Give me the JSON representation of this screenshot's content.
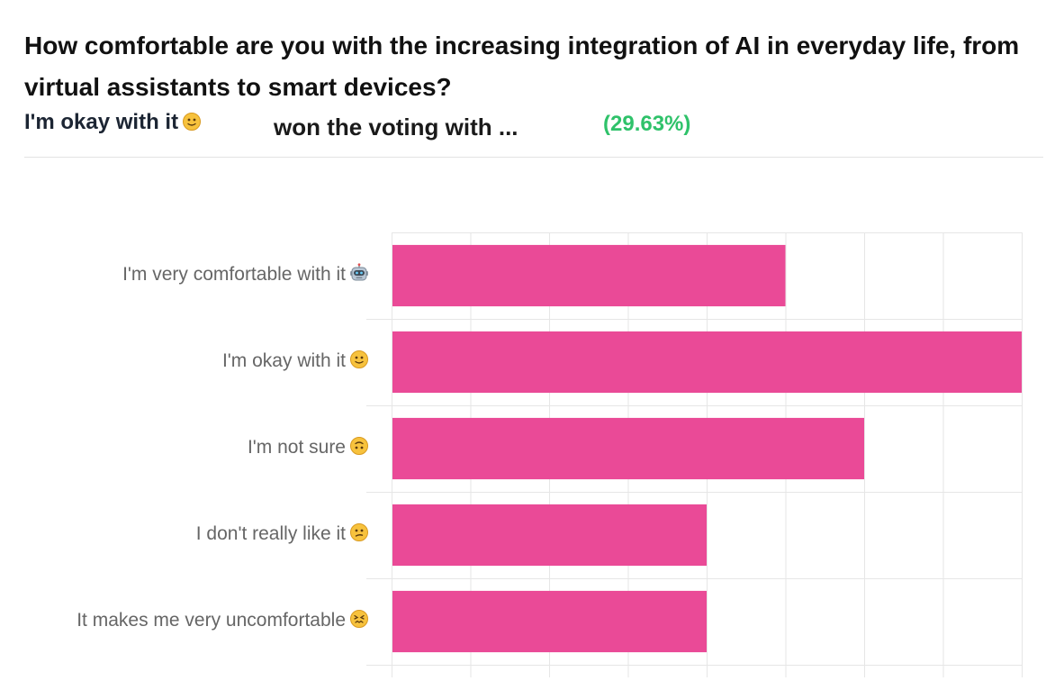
{
  "header": {
    "question": "How comfortable are you with the increasing integration of AI in everyday life, from virtual assistants to smart devices?",
    "winner_label": "I'm okay with it",
    "winner_emoji": "slightly-smiling-face-icon",
    "won_text": "won the voting with ...",
    "winner_percent": "(29.63%)"
  },
  "colors": {
    "bar": "#ea4a97",
    "grid": "#e6e6e6",
    "percent": "#2fc26a"
  },
  "chart_data": {
    "type": "bar",
    "orientation": "horizontal",
    "categories": [
      "I'm very comfortable with it",
      "I'm okay with it",
      "I'm not sure",
      "I don't really like it",
      "It makes me very uncomfortable"
    ],
    "category_icons": [
      "robot-face-icon",
      "slightly-smiling-face-icon",
      "upside-down-face-icon",
      "confused-face-icon",
      "confounded-face-icon"
    ],
    "values": [
      5,
      8,
      6,
      4,
      4
    ],
    "xlim": [
      0,
      8
    ],
    "grid": true,
    "x_tick_labels_visible": false,
    "legend": "none"
  }
}
